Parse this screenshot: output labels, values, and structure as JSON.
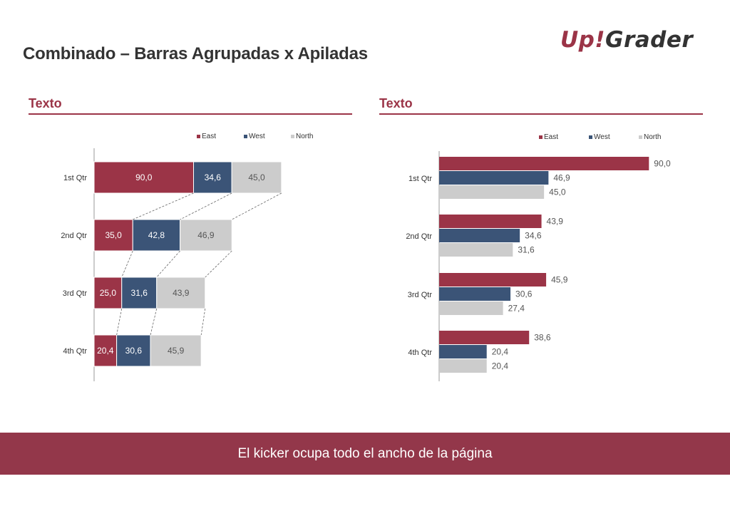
{
  "page": {
    "title": "Combinado – Barras Agrupadas x Apiladas",
    "logo_up": "Up!",
    "logo_grader": "Grader",
    "kicker": "El kicker ocupa todo el ancho de la página"
  },
  "colors": {
    "accent": "#9b3447",
    "east": "#9b3447",
    "west": "#3b5477",
    "north": "#cccccc",
    "kicker_bg": "#93374a",
    "text_dark": "#333333"
  },
  "panels": {
    "left_title": "Texto",
    "right_title": "Texto"
  },
  "chart_data": [
    {
      "type": "bar",
      "orientation": "horizontal",
      "stacked": true,
      "title": "",
      "legend_position": "top-right",
      "grid": false,
      "categories": [
        "1st Qtr",
        "2nd Qtr",
        "3rd Qtr",
        "4th Qtr"
      ],
      "series": [
        {
          "name": "East",
          "values": [
            90.0,
            35.0,
            25.0,
            20.4
          ],
          "labels": [
            "90,0",
            "35,0",
            "25,0",
            "20,4"
          ]
        },
        {
          "name": "West",
          "values": [
            34.6,
            42.8,
            31.6,
            30.6
          ],
          "labels": [
            "34,6",
            "42,8",
            "31,6",
            "30,6"
          ]
        },
        {
          "name": "North",
          "values": [
            45.0,
            46.9,
            43.9,
            45.9
          ],
          "labels": [
            "45,0",
            "46,9",
            "43,9",
            "45,9"
          ]
        }
      ],
      "series_lines": true
    },
    {
      "type": "bar",
      "orientation": "horizontal",
      "stacked": false,
      "title": "",
      "legend_position": "top-right",
      "grid": false,
      "categories": [
        "1st Qtr",
        "2nd Qtr",
        "3rd Qtr",
        "4th Qtr"
      ],
      "series": [
        {
          "name": "East",
          "values": [
            90.0,
            43.9,
            45.9,
            38.6
          ],
          "labels": [
            "90,0",
            "43,9",
            "45,9",
            "38,6"
          ]
        },
        {
          "name": "West",
          "values": [
            46.9,
            34.6,
            30.6,
            20.4
          ],
          "labels": [
            "46,9",
            "34,6",
            "30,6",
            "20,4"
          ]
        },
        {
          "name": "North",
          "values": [
            45.0,
            31.6,
            27.4,
            20.4
          ],
          "labels": [
            "45,0",
            "31,6",
            "27,4",
            "20,4"
          ]
        }
      ]
    }
  ]
}
